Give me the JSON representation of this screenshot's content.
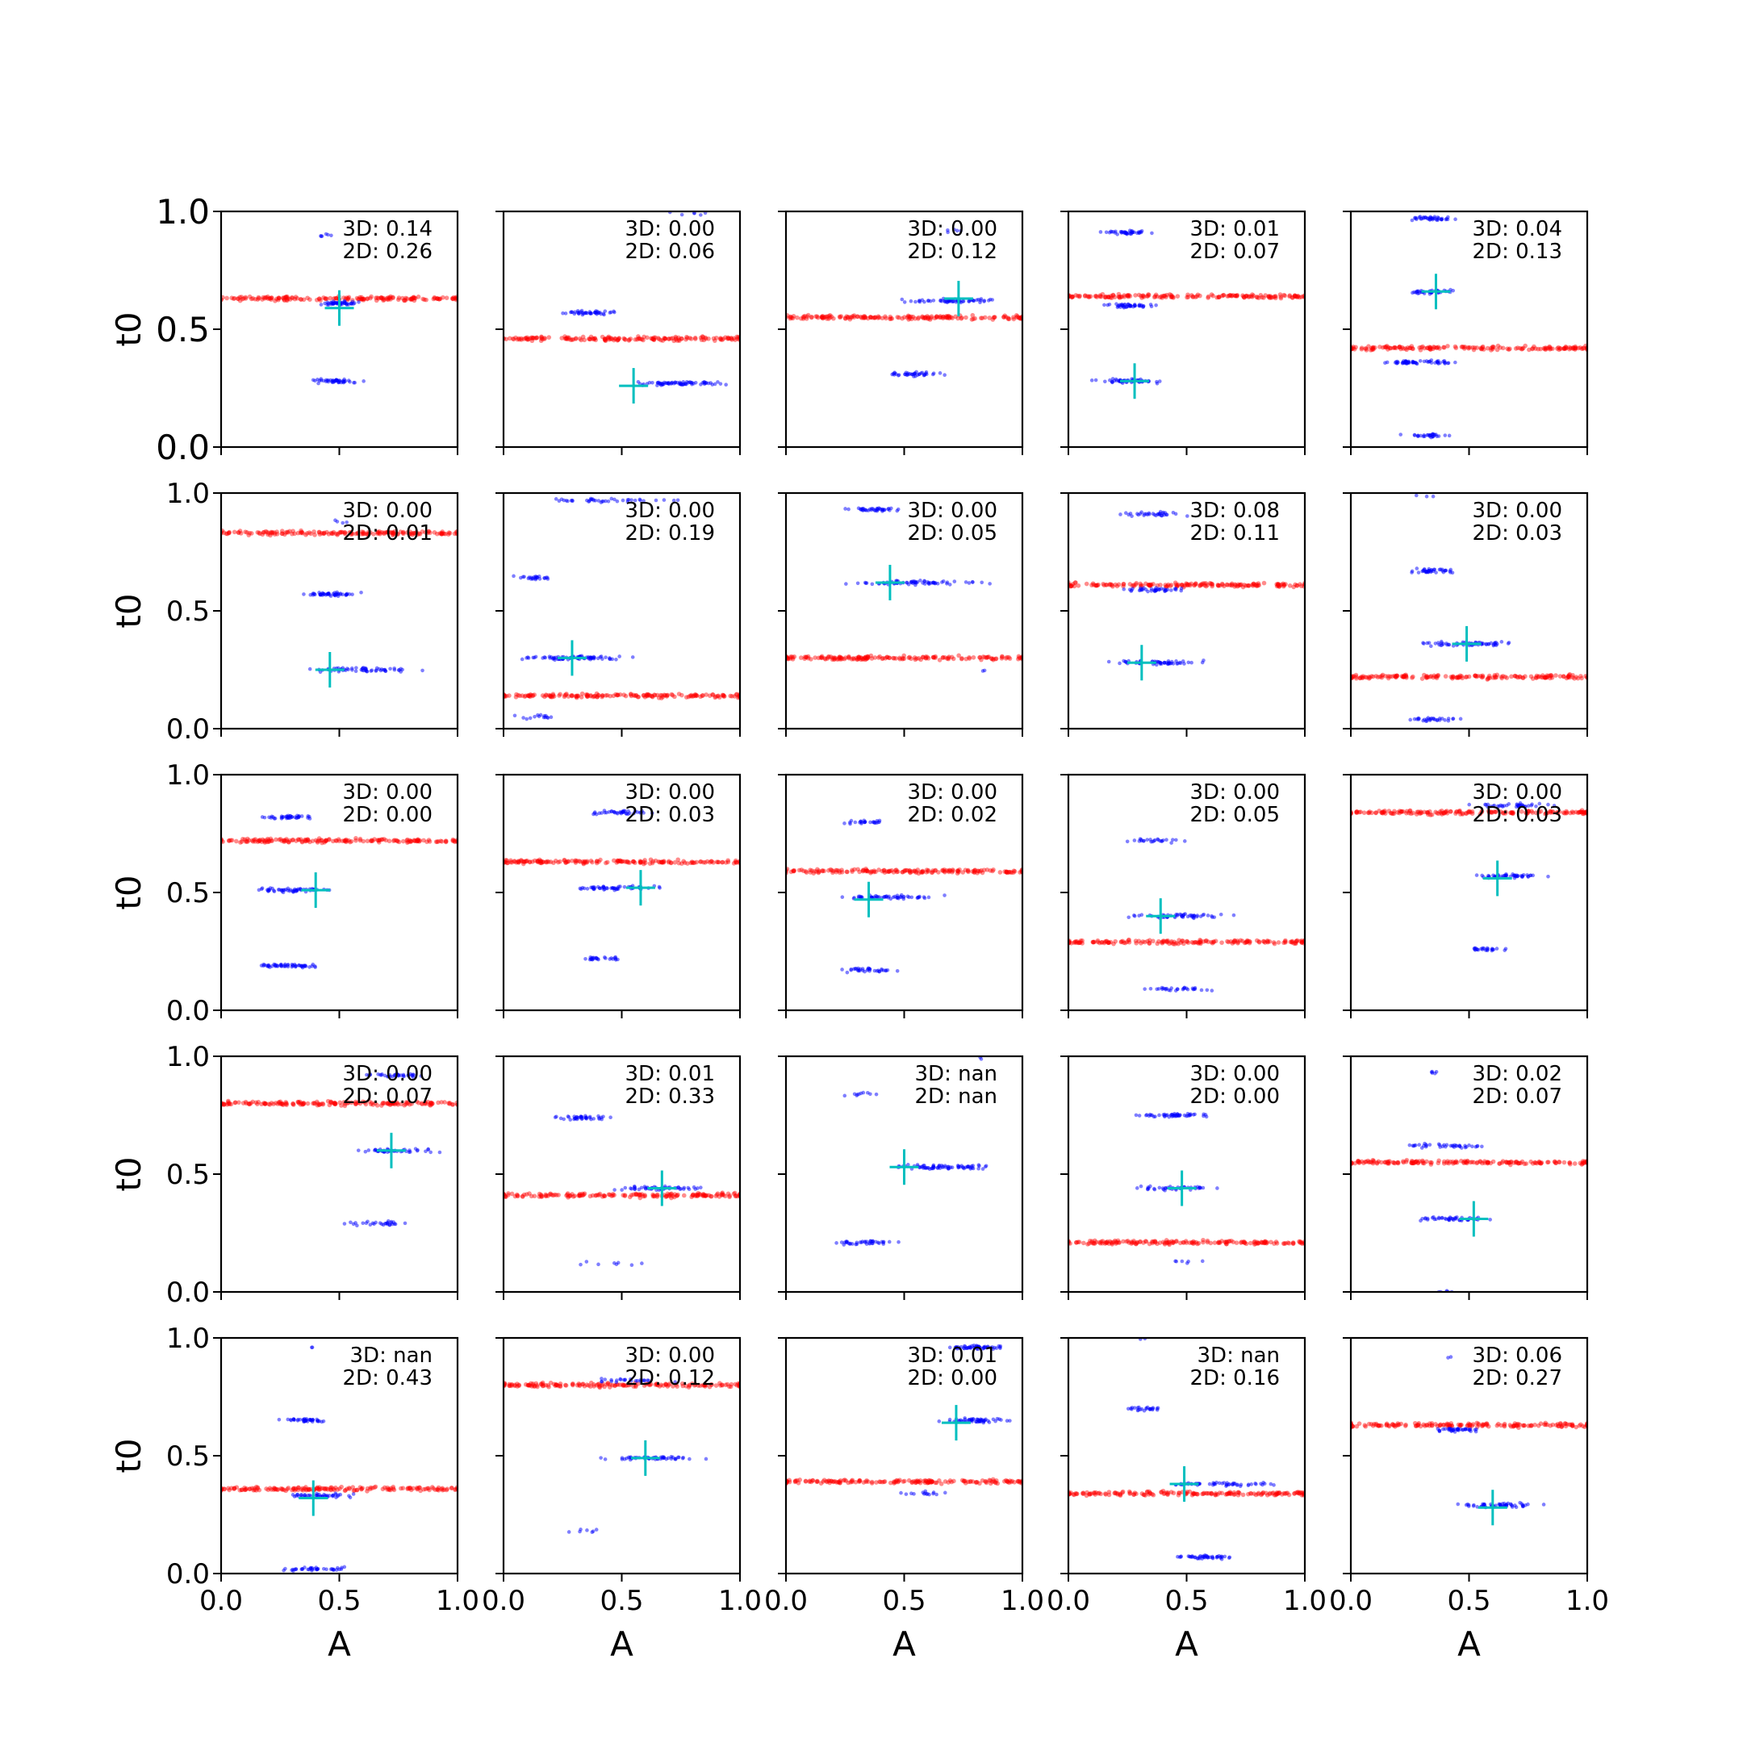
{
  "chart_data": {
    "type": "scatter",
    "layout": "5x5 grid of scatter subplots",
    "xlabel": "A",
    "ylabel": "t0",
    "xlim": [
      0.0,
      1.0
    ],
    "ylim": [
      0.0,
      1.0
    ],
    "xticks": [
      "0.0",
      "0.5",
      "1.0"
    ],
    "yticks": [
      "0.0",
      "0.5",
      "1.0"
    ],
    "series_colors": {
      "walkers": "#0000ff",
      "band": "#ff0000",
      "marker": "#00bfbf"
    },
    "panels": [
      {
        "label3d": "3D: 0.14",
        "label2d": "2D: 0.26",
        "band_t0": 0.63,
        "marker": [
          0.5,
          0.59
        ],
        "clusters": [
          {
            "t0": 0.61,
            "a0": 0.4,
            "a1": 0.62,
            "n": 45
          },
          {
            "t0": 0.28,
            "a0": 0.35,
            "a1": 0.62,
            "n": 45
          },
          {
            "t0": 0.9,
            "a0": 0.4,
            "a1": 0.48,
            "n": 6
          }
        ]
      },
      {
        "label3d": "3D: 0.00",
        "label2d": "2D: 0.06",
        "band_t0": 0.46,
        "marker": [
          0.55,
          0.26
        ],
        "clusters": [
          {
            "t0": 0.57,
            "a0": 0.2,
            "a1": 0.52,
            "n": 45
          },
          {
            "t0": 0.27,
            "a0": 0.45,
            "a1": 0.98,
            "n": 70
          },
          {
            "t0": 0.99,
            "a0": 0.55,
            "a1": 0.98,
            "n": 6
          }
        ]
      },
      {
        "label3d": "3D: 0.00",
        "label2d": "2D: 0.12",
        "band_t0": 0.55,
        "marker": [
          0.73,
          0.63
        ],
        "clusters": [
          {
            "t0": 0.62,
            "a0": 0.45,
            "a1": 0.96,
            "n": 60
          },
          {
            "t0": 0.31,
            "a0": 0.4,
            "a1": 0.7,
            "n": 40
          },
          {
            "t0": 0.92,
            "a0": 0.64,
            "a1": 0.76,
            "n": 5
          }
        ]
      },
      {
        "label3d": "3D: 0.01",
        "label2d": "2D: 0.07",
        "band_t0": 0.64,
        "marker": [
          0.28,
          0.28
        ],
        "clusters": [
          {
            "t0": 0.91,
            "a0": 0.1,
            "a1": 0.4,
            "n": 40
          },
          {
            "t0": 0.6,
            "a0": 0.12,
            "a1": 0.4,
            "n": 45
          },
          {
            "t0": 0.28,
            "a0": 0.08,
            "a1": 0.45,
            "n": 55
          }
        ]
      },
      {
        "label3d": "3D: 0.04",
        "label2d": "2D: 0.13",
        "band_t0": 0.42,
        "marker": [
          0.36,
          0.66
        ],
        "clusters": [
          {
            "t0": 0.97,
            "a0": 0.2,
            "a1": 0.48,
            "n": 40
          },
          {
            "t0": 0.66,
            "a0": 0.22,
            "a1": 0.48,
            "n": 40
          },
          {
            "t0": 0.36,
            "a0": 0.08,
            "a1": 0.52,
            "n": 60
          },
          {
            "t0": 0.05,
            "a0": 0.2,
            "a1": 0.45,
            "n": 30
          }
        ]
      },
      {
        "label3d": "3D: 0.00",
        "label2d": "2D: 0.01",
        "band_t0": 0.83,
        "marker": [
          0.46,
          0.25
        ],
        "clusters": [
          {
            "t0": 0.57,
            "a0": 0.3,
            "a1": 0.62,
            "n": 50
          },
          {
            "t0": 0.25,
            "a0": 0.3,
            "a1": 0.95,
            "n": 60
          },
          {
            "t0": 0.88,
            "a0": 0.45,
            "a1": 0.6,
            "n": 4
          }
        ]
      },
      {
        "label3d": "3D: 0.00",
        "label2d": "2D: 0.19",
        "band_t0": 0.14,
        "marker": [
          0.29,
          0.3
        ],
        "clusters": [
          {
            "t0": 0.3,
            "a0": 0.0,
            "a1": 0.6,
            "n": 80
          },
          {
            "t0": 0.64,
            "a0": 0.0,
            "a1": 0.25,
            "n": 25
          },
          {
            "t0": 0.97,
            "a0": 0.0,
            "a1": 0.95,
            "n": 40
          },
          {
            "t0": 0.05,
            "a0": 0.0,
            "a1": 0.3,
            "n": 15
          }
        ]
      },
      {
        "label3d": "3D: 0.00",
        "label2d": "2D: 0.05",
        "band_t0": 0.3,
        "marker": [
          0.44,
          0.62
        ],
        "clusters": [
          {
            "t0": 0.93,
            "a0": 0.18,
            "a1": 0.55,
            "n": 40
          },
          {
            "t0": 0.62,
            "a0": 0.15,
            "a1": 0.98,
            "n": 70
          },
          {
            "t0": 0.24,
            "a0": 0.8,
            "a1": 0.9,
            "n": 2
          }
        ]
      },
      {
        "label3d": "3D: 0.08",
        "label2d": "2D: 0.11",
        "band_t0": 0.61,
        "marker": [
          0.31,
          0.28
        ],
        "clusters": [
          {
            "t0": 0.91,
            "a0": 0.2,
            "a1": 0.52,
            "n": 35
          },
          {
            "t0": 0.59,
            "a0": 0.18,
            "a1": 0.52,
            "n": 40
          },
          {
            "t0": 0.28,
            "a0": 0.1,
            "a1": 0.65,
            "n": 55
          }
        ]
      },
      {
        "label3d": "3D: 0.00",
        "label2d": "2D: 0.03",
        "band_t0": 0.22,
        "marker": [
          0.49,
          0.36
        ],
        "clusters": [
          {
            "t0": 0.67,
            "a0": 0.2,
            "a1": 0.5,
            "n": 40
          },
          {
            "t0": 0.36,
            "a0": 0.18,
            "a1": 0.8,
            "n": 60
          },
          {
            "t0": 0.04,
            "a0": 0.2,
            "a1": 0.5,
            "n": 30
          },
          {
            "t0": 0.99,
            "a0": 0.22,
            "a1": 0.38,
            "n": 3
          }
        ]
      },
      {
        "label3d": "3D: 0.00",
        "label2d": "2D: 0.00",
        "band_t0": 0.72,
        "marker": [
          0.4,
          0.51
        ],
        "clusters": [
          {
            "t0": 0.82,
            "a0": 0.15,
            "a1": 0.42,
            "n": 40
          },
          {
            "t0": 0.51,
            "a0": 0.08,
            "a1": 0.52,
            "n": 55
          },
          {
            "t0": 0.19,
            "a0": 0.08,
            "a1": 0.48,
            "n": 55
          }
        ]
      },
      {
        "label3d": "3D: 0.00",
        "label2d": "2D: 0.03",
        "band_t0": 0.63,
        "marker": [
          0.58,
          0.52
        ],
        "clusters": [
          {
            "t0": 0.84,
            "a0": 0.3,
            "a1": 0.68,
            "n": 40
          },
          {
            "t0": 0.52,
            "a0": 0.25,
            "a1": 0.75,
            "n": 55
          },
          {
            "t0": 0.22,
            "a0": 0.28,
            "a1": 0.55,
            "n": 25
          }
        ]
      },
      {
        "label3d": "3D: 0.00",
        "label2d": "2D: 0.02",
        "band_t0": 0.59,
        "marker": [
          0.35,
          0.47
        ],
        "clusters": [
          {
            "t0": 0.8,
            "a0": 0.22,
            "a1": 0.42,
            "n": 25
          },
          {
            "t0": 0.48,
            "a0": 0.15,
            "a1": 0.72,
            "n": 55
          },
          {
            "t0": 0.17,
            "a0": 0.2,
            "a1": 0.52,
            "n": 35
          }
        ]
      },
      {
        "label3d": "3D: 0.00",
        "label2d": "2D: 0.05",
        "band_t0": 0.29,
        "marker": [
          0.39,
          0.4
        ],
        "clusters": [
          {
            "t0": 0.72,
            "a0": 0.22,
            "a1": 0.55,
            "n": 25
          },
          {
            "t0": 0.4,
            "a0": 0.18,
            "a1": 0.75,
            "n": 55
          },
          {
            "t0": 0.09,
            "a0": 0.25,
            "a1": 0.7,
            "n": 30
          }
        ]
      },
      {
        "label3d": "3D: 0.00",
        "label2d": "2D: 0.03",
        "band_t0": 0.84,
        "marker": [
          0.62,
          0.56
        ],
        "clusters": [
          {
            "t0": 0.87,
            "a0": 0.45,
            "a1": 0.9,
            "n": 40
          },
          {
            "t0": 0.57,
            "a0": 0.45,
            "a1": 0.88,
            "n": 50
          },
          {
            "t0": 0.26,
            "a0": 0.4,
            "a1": 0.72,
            "n": 25
          }
        ]
      },
      {
        "label3d": "3D: 0.00",
        "label2d": "2D: 0.07",
        "band_t0": 0.8,
        "marker": [
          0.72,
          0.6
        ],
        "clusters": [
          {
            "t0": 0.92,
            "a0": 0.55,
            "a1": 0.92,
            "n": 35
          },
          {
            "t0": 0.6,
            "a0": 0.48,
            "a1": 0.95,
            "n": 45
          },
          {
            "t0": 0.29,
            "a0": 0.5,
            "a1": 0.85,
            "n": 30
          }
        ]
      },
      {
        "label3d": "3D: 0.01",
        "label2d": "2D: 0.33",
        "band_t0": 0.41,
        "marker": [
          0.67,
          0.44
        ],
        "clusters": [
          {
            "t0": 0.74,
            "a0": 0.15,
            "a1": 0.5,
            "n": 40
          },
          {
            "t0": 0.44,
            "a0": 0.35,
            "a1": 0.95,
            "n": 50
          },
          {
            "t0": 0.12,
            "a0": 0.25,
            "a1": 0.78,
            "n": 8
          }
        ]
      },
      {
        "label3d": "3D: nan",
        "label2d": "2D: nan",
        "band_t0": null,
        "marker": [
          0.5,
          0.53
        ],
        "clusters": [
          {
            "t0": 0.84,
            "a0": 0.2,
            "a1": 0.45,
            "n": 10
          },
          {
            "t0": 0.53,
            "a0": 0.35,
            "a1": 0.98,
            "n": 75
          },
          {
            "t0": 0.21,
            "a0": 0.15,
            "a1": 0.52,
            "n": 40
          },
          {
            "t0": 0.99,
            "a0": 0.8,
            "a1": 0.85,
            "n": 2
          }
        ]
      },
      {
        "label3d": "3D: 0.00",
        "label2d": "2D: 0.00",
        "band_t0": 0.21,
        "marker": [
          0.48,
          0.44
        ],
        "clusters": [
          {
            "t0": 0.75,
            "a0": 0.25,
            "a1": 0.65,
            "n": 50
          },
          {
            "t0": 0.44,
            "a0": 0.2,
            "a1": 0.7,
            "n": 40
          },
          {
            "t0": 0.13,
            "a0": 0.4,
            "a1": 0.6,
            "n": 6
          }
        ]
      },
      {
        "label3d": "3D: 0.02",
        "label2d": "2D: 0.07",
        "band_t0": 0.55,
        "marker": [
          0.52,
          0.31
        ],
        "clusters": [
          {
            "t0": 0.93,
            "a0": 0.28,
            "a1": 0.42,
            "n": 5
          },
          {
            "t0": 0.62,
            "a0": 0.2,
            "a1": 0.6,
            "n": 40
          },
          {
            "t0": 0.31,
            "a0": 0.2,
            "a1": 0.65,
            "n": 45
          },
          {
            "t0": 0.0,
            "a0": 0.35,
            "a1": 0.45,
            "n": 6
          }
        ]
      },
      {
        "label3d": "3D: nan",
        "label2d": "2D: 0.43",
        "band_t0": 0.36,
        "marker": [
          0.39,
          0.32
        ],
        "clusters": [
          {
            "t0": 0.65,
            "a0": 0.22,
            "a1": 0.5,
            "n": 40
          },
          {
            "t0": 0.33,
            "a0": 0.18,
            "a1": 0.62,
            "n": 45
          },
          {
            "t0": 0.02,
            "a0": 0.22,
            "a1": 0.55,
            "n": 40
          },
          {
            "t0": 0.96,
            "a0": 0.35,
            "a1": 0.4,
            "n": 2
          }
        ]
      },
      {
        "label3d": "3D: 0.00",
        "label2d": "2D: 0.12",
        "band_t0": 0.8,
        "marker": [
          0.6,
          0.49
        ],
        "clusters": [
          {
            "t0": 0.82,
            "a0": 0.3,
            "a1": 0.75,
            "n": 25
          },
          {
            "t0": 0.49,
            "a0": 0.3,
            "a1": 0.92,
            "n": 55
          },
          {
            "t0": 0.18,
            "a0": 0.25,
            "a1": 0.55,
            "n": 7
          }
        ]
      },
      {
        "label3d": "3D: 0.01",
        "label2d": "2D: 0.00",
        "band_t0": 0.39,
        "marker": [
          0.72,
          0.64
        ],
        "clusters": [
          {
            "t0": 0.96,
            "a0": 0.65,
            "a1": 0.99,
            "n": 55
          },
          {
            "t0": 0.65,
            "a0": 0.6,
            "a1": 0.98,
            "n": 55
          },
          {
            "t0": 0.34,
            "a0": 0.4,
            "a1": 0.72,
            "n": 15
          }
        ]
      },
      {
        "label3d": "3D: nan",
        "label2d": "2D: 0.16",
        "band_t0": 0.34,
        "marker": [
          0.49,
          0.38
        ],
        "clusters": [
          {
            "t0": 0.7,
            "a0": 0.2,
            "a1": 0.45,
            "n": 25
          },
          {
            "t0": 0.38,
            "a0": 0.3,
            "a1": 0.98,
            "n": 55
          },
          {
            "t0": 0.07,
            "a0": 0.4,
            "a1": 0.75,
            "n": 45
          },
          {
            "t0": 0.99,
            "a0": 0.28,
            "a1": 0.34,
            "n": 2
          }
        ]
      },
      {
        "label3d": "3D: 0.06",
        "label2d": "2D: 0.27",
        "band_t0": 0.63,
        "marker": [
          0.6,
          0.28
        ],
        "clusters": [
          {
            "t0": 0.61,
            "a0": 0.3,
            "a1": 0.58,
            "n": 40
          },
          {
            "t0": 0.29,
            "a0": 0.4,
            "a1": 0.85,
            "n": 55
          },
          {
            "t0": 0.92,
            "a0": 0.38,
            "a1": 0.45,
            "n": 2
          }
        ]
      }
    ]
  }
}
